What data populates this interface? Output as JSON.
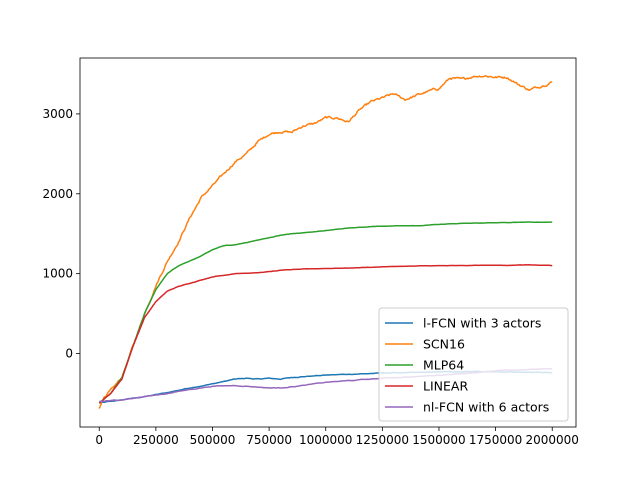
{
  "chart_data": {
    "type": "line",
    "title": "",
    "xlabel": "",
    "ylabel": "",
    "xlim": [
      -85000,
      2105000
    ],
    "ylim": [
      -920,
      3700
    ],
    "x_ticks": [
      0,
      250000,
      500000,
      750000,
      1000000,
      1250000,
      1500000,
      1750000,
      2000000
    ],
    "x_tick_labels": [
      "0",
      "250000",
      "500000",
      "750000",
      "1000000",
      "1250000",
      "1500000",
      "1750000",
      "2000000"
    ],
    "y_ticks": [
      0,
      1000,
      2000,
      3000
    ],
    "y_tick_labels": [
      "0",
      "1000",
      "2000",
      "3000"
    ],
    "grid": false,
    "legend_position": "lower-right",
    "series": [
      {
        "name": "l-FCN with 3 actors",
        "color": "#1f77b4",
        "noise": 6,
        "points": [
          [
            0,
            -620
          ],
          [
            50000,
            -600
          ],
          [
            100000,
            -580
          ],
          [
            200000,
            -540
          ],
          [
            300000,
            -490
          ],
          [
            400000,
            -430
          ],
          [
            500000,
            -380
          ],
          [
            550000,
            -350
          ],
          [
            600000,
            -320
          ],
          [
            650000,
            -310
          ],
          [
            700000,
            -320
          ],
          [
            750000,
            -310
          ],
          [
            800000,
            -320
          ],
          [
            850000,
            -300
          ],
          [
            900000,
            -290
          ],
          [
            1000000,
            -270
          ],
          [
            1100000,
            -260
          ],
          [
            1200000,
            -250
          ],
          [
            1300000,
            -240
          ],
          [
            1400000,
            -240
          ],
          [
            1500000,
            -230
          ],
          [
            1600000,
            -230
          ],
          [
            1700000,
            -225
          ],
          [
            1800000,
            -230
          ],
          [
            1900000,
            -235
          ],
          [
            2000000,
            -240
          ]
        ]
      },
      {
        "name": "SCN16",
        "color": "#ff7f0e",
        "noise": 22,
        "points": [
          [
            0,
            -700
          ],
          [
            20000,
            -550
          ],
          [
            50000,
            -470
          ],
          [
            100000,
            -300
          ],
          [
            150000,
            100
          ],
          [
            200000,
            500
          ],
          [
            250000,
            850
          ],
          [
            300000,
            1150
          ],
          [
            350000,
            1400
          ],
          [
            400000,
            1700
          ],
          [
            450000,
            1950
          ],
          [
            500000,
            2100
          ],
          [
            550000,
            2250
          ],
          [
            600000,
            2400
          ],
          [
            650000,
            2500
          ],
          [
            700000,
            2650
          ],
          [
            750000,
            2750
          ],
          [
            800000,
            2780
          ],
          [
            850000,
            2770
          ],
          [
            900000,
            2850
          ],
          [
            950000,
            2880
          ],
          [
            1000000,
            2950
          ],
          [
            1050000,
            2950
          ],
          [
            1100000,
            2900
          ],
          [
            1150000,
            3050
          ],
          [
            1200000,
            3150
          ],
          [
            1250000,
            3200
          ],
          [
            1300000,
            3250
          ],
          [
            1350000,
            3180
          ],
          [
            1400000,
            3230
          ],
          [
            1450000,
            3280
          ],
          [
            1500000,
            3320
          ],
          [
            1550000,
            3450
          ],
          [
            1600000,
            3430
          ],
          [
            1650000,
            3470
          ],
          [
            1700000,
            3480
          ],
          [
            1750000,
            3460
          ],
          [
            1800000,
            3460
          ],
          [
            1850000,
            3370
          ],
          [
            1900000,
            3300
          ],
          [
            1950000,
            3350
          ],
          [
            2000000,
            3400
          ]
        ]
      },
      {
        "name": "MLP64",
        "color": "#2ca02c",
        "noise": 3,
        "points": [
          [
            0,
            -620
          ],
          [
            50000,
            -500
          ],
          [
            100000,
            -300
          ],
          [
            150000,
            100
          ],
          [
            200000,
            500
          ],
          [
            250000,
            800
          ],
          [
            300000,
            1000
          ],
          [
            350000,
            1100
          ],
          [
            400000,
            1160
          ],
          [
            450000,
            1220
          ],
          [
            500000,
            1300
          ],
          [
            550000,
            1350
          ],
          [
            600000,
            1360
          ],
          [
            650000,
            1390
          ],
          [
            700000,
            1420
          ],
          [
            750000,
            1450
          ],
          [
            800000,
            1480
          ],
          [
            850000,
            1500
          ],
          [
            900000,
            1510
          ],
          [
            1000000,
            1540
          ],
          [
            1100000,
            1570
          ],
          [
            1200000,
            1590
          ],
          [
            1300000,
            1600
          ],
          [
            1400000,
            1600
          ],
          [
            1500000,
            1615
          ],
          [
            1600000,
            1630
          ],
          [
            1700000,
            1635
          ],
          [
            1800000,
            1640
          ],
          [
            1900000,
            1645
          ],
          [
            2000000,
            1645
          ]
        ]
      },
      {
        "name": "LINEAR",
        "color": "#d62728",
        "noise": 3,
        "points": [
          [
            0,
            -620
          ],
          [
            50000,
            -500
          ],
          [
            100000,
            -320
          ],
          [
            150000,
            100
          ],
          [
            200000,
            450
          ],
          [
            250000,
            650
          ],
          [
            300000,
            780
          ],
          [
            350000,
            840
          ],
          [
            400000,
            880
          ],
          [
            450000,
            920
          ],
          [
            500000,
            960
          ],
          [
            550000,
            980
          ],
          [
            600000,
            1000
          ],
          [
            700000,
            1010
          ],
          [
            800000,
            1040
          ],
          [
            900000,
            1060
          ],
          [
            1000000,
            1065
          ],
          [
            1100000,
            1070
          ],
          [
            1200000,
            1080
          ],
          [
            1300000,
            1090
          ],
          [
            1400000,
            1095
          ],
          [
            1500000,
            1100
          ],
          [
            1600000,
            1100
          ],
          [
            1700000,
            1105
          ],
          [
            1800000,
            1105
          ],
          [
            1900000,
            1110
          ],
          [
            2000000,
            1100
          ]
        ]
      },
      {
        "name": "nl-FCN with 6 actors",
        "color": "#9467bd",
        "noise": 6,
        "points": [
          [
            0,
            -600
          ],
          [
            50000,
            -590
          ],
          [
            100000,
            -580
          ],
          [
            200000,
            -540
          ],
          [
            300000,
            -500
          ],
          [
            400000,
            -450
          ],
          [
            500000,
            -410
          ],
          [
            600000,
            -400
          ],
          [
            700000,
            -420
          ],
          [
            750000,
            -430
          ],
          [
            800000,
            -430
          ],
          [
            900000,
            -400
          ],
          [
            1000000,
            -360
          ],
          [
            1100000,
            -340
          ],
          [
            1200000,
            -320
          ],
          [
            1300000,
            -300
          ],
          [
            1400000,
            -290
          ],
          [
            1500000,
            -270
          ],
          [
            1600000,
            -250
          ],
          [
            1700000,
            -230
          ],
          [
            1800000,
            -210
          ],
          [
            1900000,
            -200
          ],
          [
            2000000,
            -190
          ]
        ]
      }
    ]
  }
}
